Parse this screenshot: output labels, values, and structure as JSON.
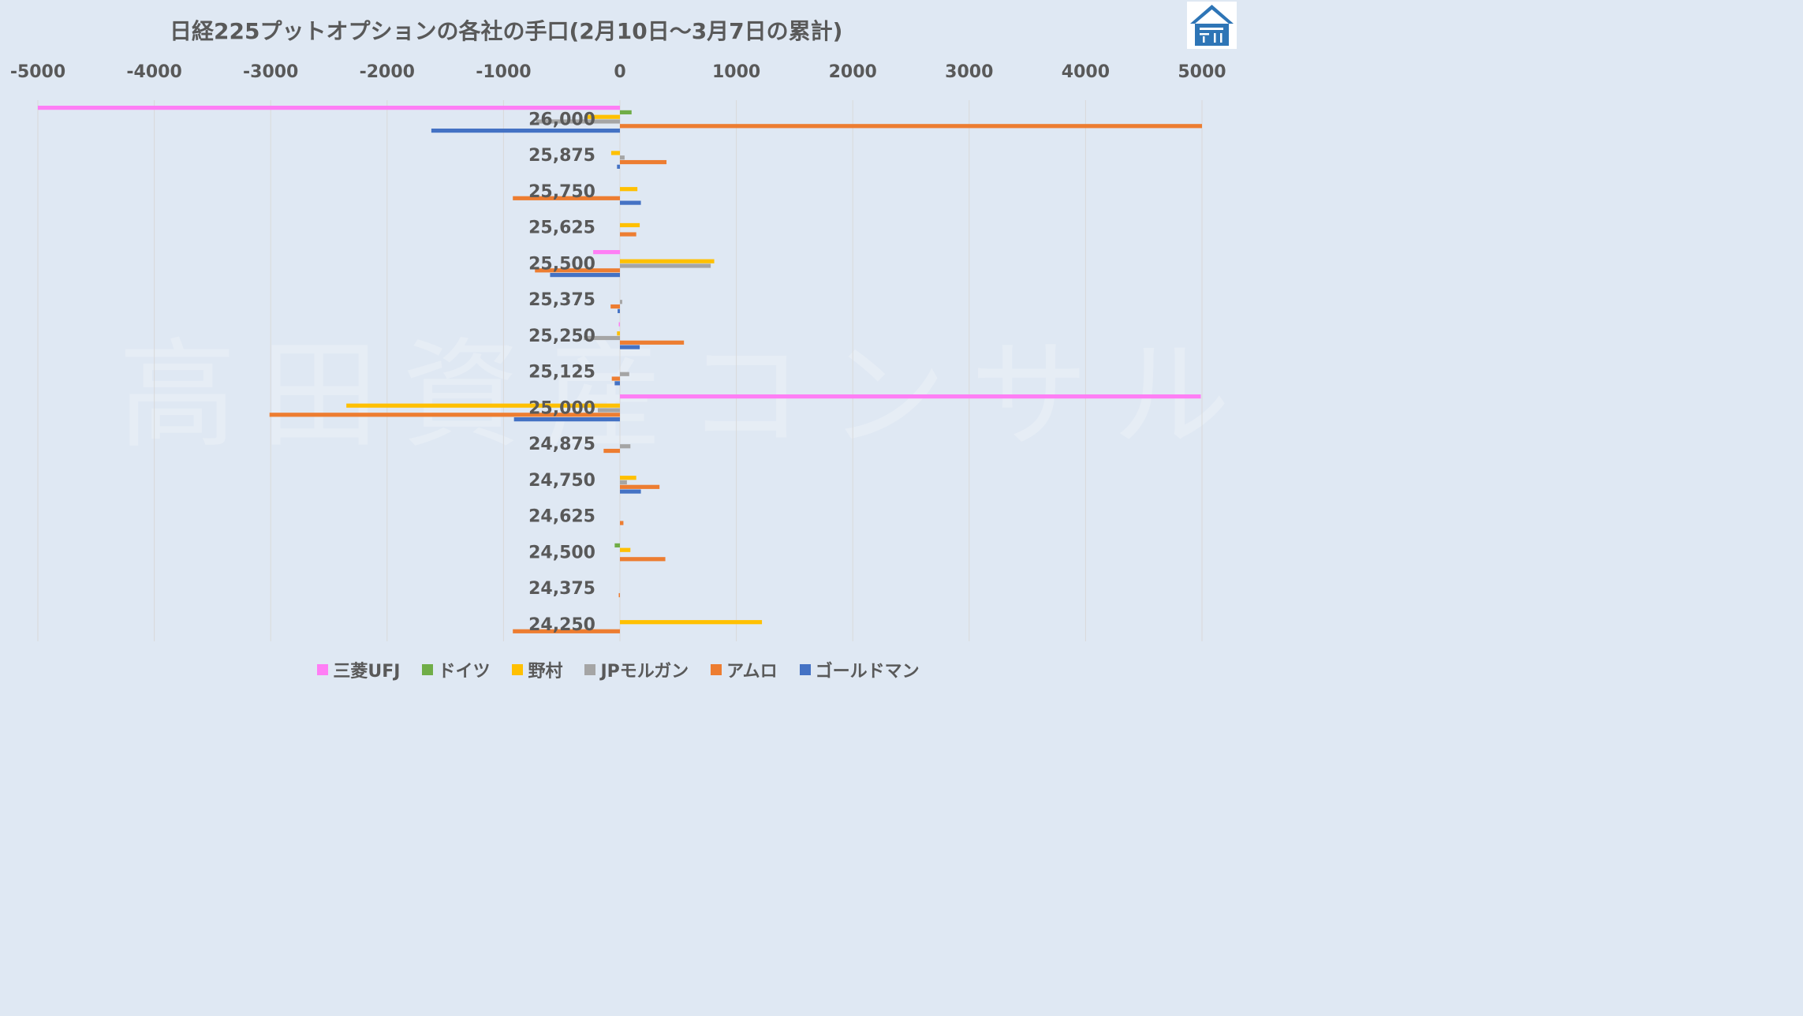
{
  "chart_data": {
    "type": "bar",
    "orientation": "horizontal",
    "title": "日経225プットオプションの各社の手口(2月10日～3月7日の累計)",
    "xlim": [
      -5000,
      5000
    ],
    "x_ticks": [
      "-5000",
      "-4000",
      "-3000",
      "-2000",
      "-1000",
      "0",
      "1000",
      "2000",
      "3000",
      "4000",
      "5000"
    ],
    "grid": true,
    "legend_position": "bottom",
    "watermark": "高田資産コンサル",
    "categories": [
      "26,000",
      "25,875",
      "25,750",
      "25,625",
      "25,500",
      "25,375",
      "25,250",
      "25,125",
      "25,000",
      "24,875",
      "24,750",
      "24,625",
      "24,500",
      "24,375",
      "24,250"
    ],
    "series": [
      {
        "name": "三菱UFJ",
        "color": "#ff7ef5",
        "values": [
          -5000,
          0,
          0,
          0,
          -230,
          0,
          -10,
          0,
          4990,
          0,
          0,
          0,
          0,
          0,
          0
        ]
      },
      {
        "name": "ドイツ",
        "color": "#70ad47",
        "values": [
          100,
          0,
          0,
          0,
          0,
          0,
          0,
          0,
          0,
          0,
          0,
          0,
          -45,
          0,
          0
        ]
      },
      {
        "name": "野村",
        "color": "#ffc000",
        "values": [
          -280,
          -75,
          150,
          170,
          810,
          0,
          -25,
          0,
          -2350,
          0,
          140,
          0,
          90,
          0,
          1220
        ]
      },
      {
        "name": "JPモルガン",
        "color": "#a5a5a5",
        "values": [
          -720,
          40,
          0,
          0,
          780,
          20,
          -310,
          80,
          -190,
          90,
          60,
          0,
          0,
          0,
          0
        ]
      },
      {
        "name": "アムロ",
        "color": "#ed7d31",
        "values": [
          5000,
          400,
          -920,
          140,
          -730,
          -80,
          550,
          -70,
          -3010,
          -140,
          340,
          30,
          390,
          -10,
          -920
        ]
      },
      {
        "name": "ゴールドマン",
        "color": "#4472c4",
        "values": [
          -1620,
          -25,
          180,
          0,
          -600,
          -20,
          170,
          -45,
          -910,
          0,
          180,
          0,
          0,
          0,
          0
        ]
      }
    ]
  },
  "brand": {
    "logo_icon": "house-logo-icon"
  }
}
